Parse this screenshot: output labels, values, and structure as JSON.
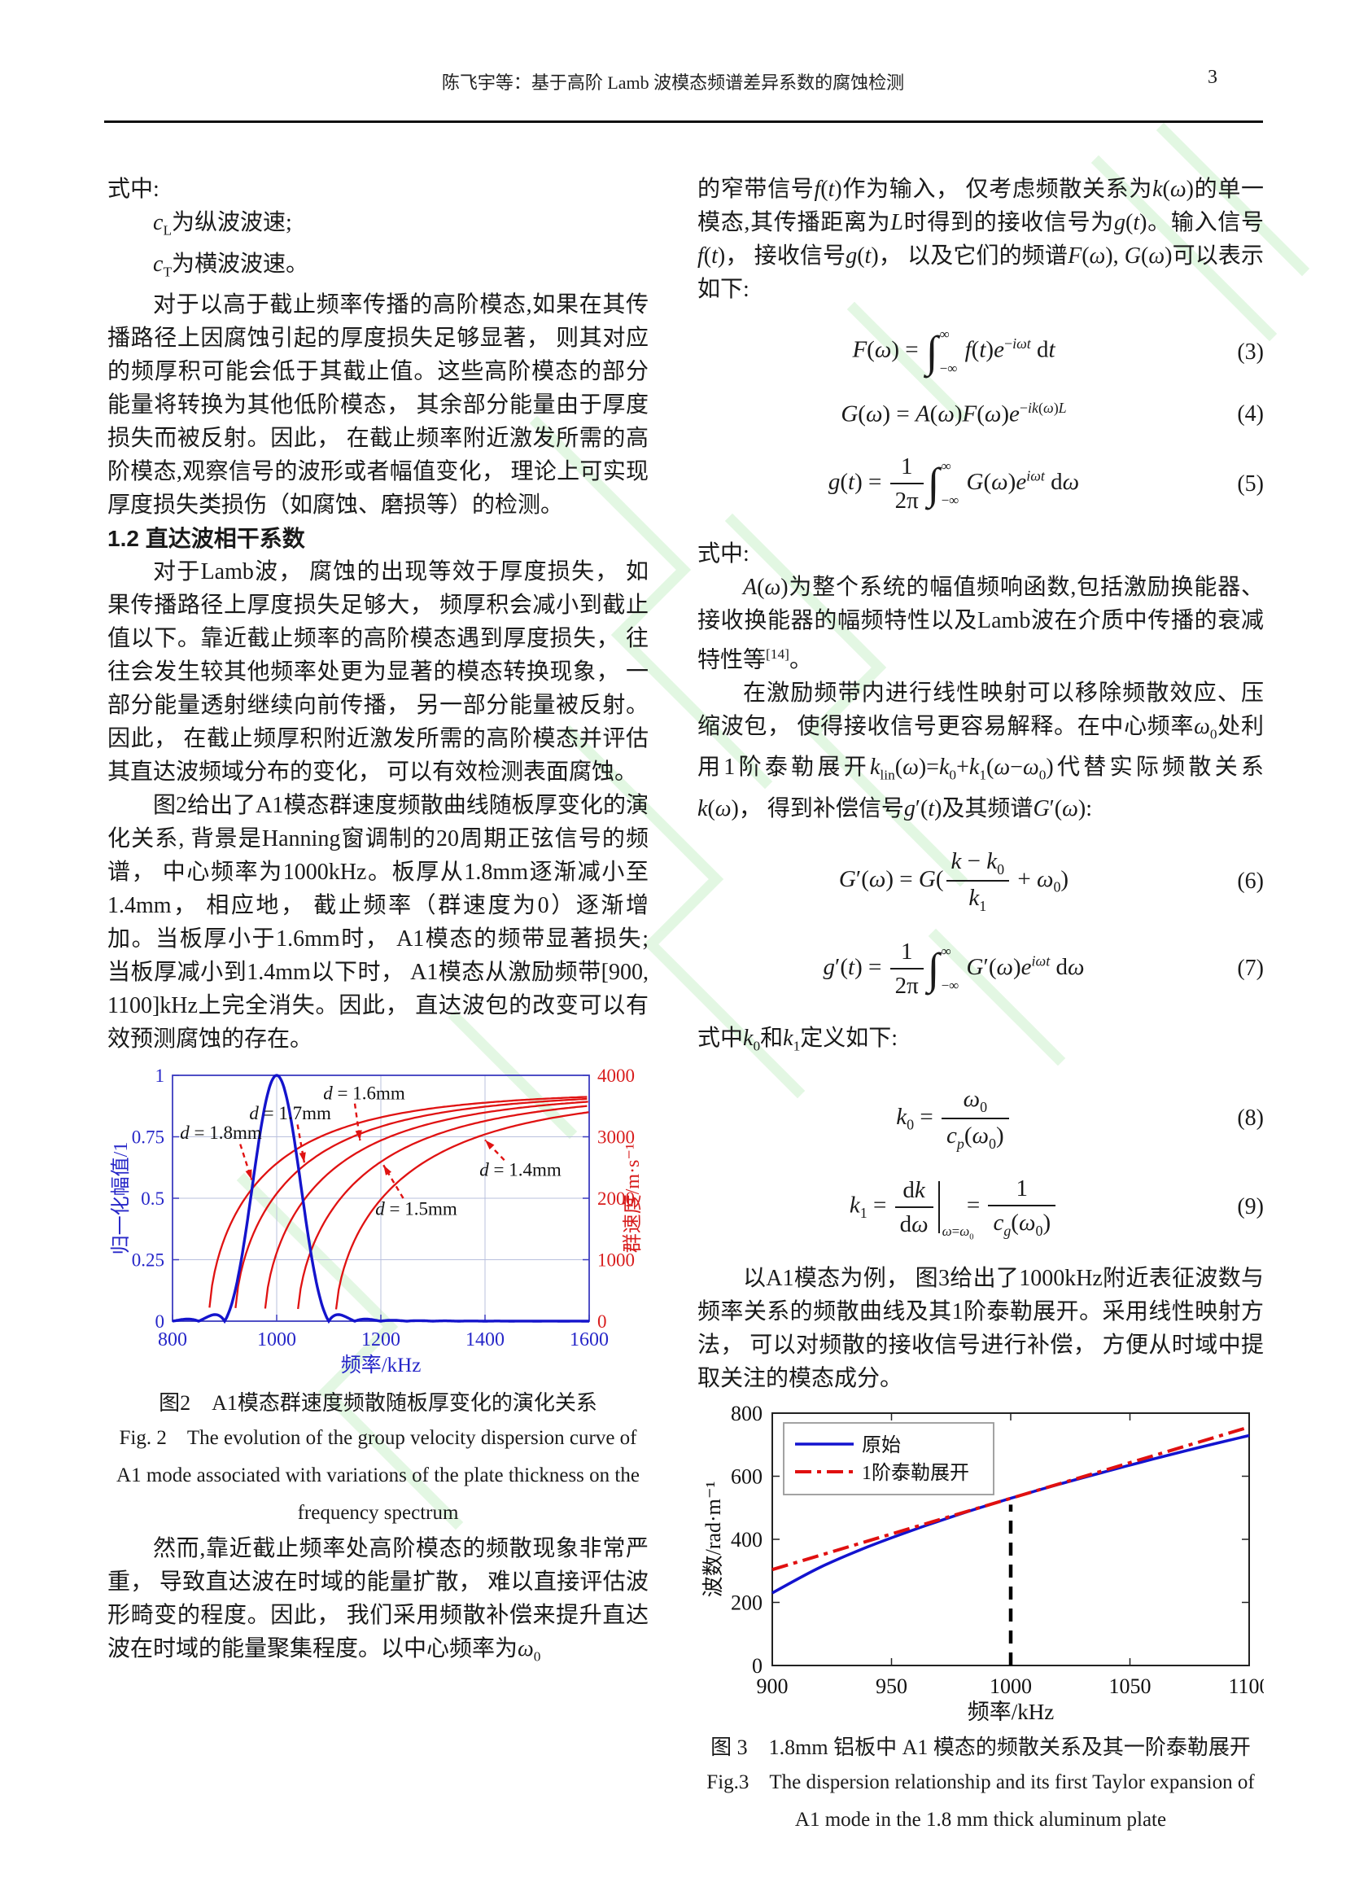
{
  "header": {
    "title": "陈飞宇等：基于高阶 Lamb 波模态频谱差异系数的腐蚀检测",
    "page_number": "3"
  },
  "left_column": {
    "p_shizhong": "式中:",
    "def_cl": "<i>c</i><sub>L</sub>为纵波波速;",
    "def_ct": "<i>c</i><sub>T</sub>为横波波速。",
    "p1": "对于以高于截止频率传播的高阶模态,如果在其传播路径上因腐蚀引起的厚度损失足够显著， 则其对应的频厚积可能会低于其截止值。这些高阶模态的部分能量将转换为其他低阶模态， 其余部分能量由于厚度损失而被反射。因此， 在截止频率附近激发所需的高阶模态,观察信号的波形或者幅值变化， 理论上可实现厚度损失类损伤（如腐蚀、磨损等）的检测。",
    "heading_12": "1.2  直达波相干系数",
    "p2": "对于Lamb波， 腐蚀的出现等效于厚度损失， 如果传播路径上厚度损失足够大， 频厚积会减小到截止值以下。靠近截止频率的高阶模态遇到厚度损失， 往往会发生较其他频率处更为显著的模态转换现象， 一部分能量透射继续向前传播， 另一部分能量被反射。因此， 在截止频厚积附近激发所需的高阶模态并评估其直达波频域分布的变化， 可以有效检测表面腐蚀。",
    "p3": "图2给出了A1模态群速度频散曲线随板厚变化的演化关系, 背景是Hanning窗调制的20周期正弦信号的频谱， 中心频率为1000kHz。板厚从1.8mm逐渐减小至1.4mm， 相应地， 截止频率（群速度为0）逐渐增加。当板厚小于1.6mm时， A1模态的频带显著损失; 当板厚减小到1.4mm以下时， A1模态从激励频带[900, 1100]kHz上完全消失。因此， 直达波包的改变可以有效预测腐蚀的存在。",
    "fig2_caption_cn": "图2　A1模态群速度频散随板厚变化的演化关系",
    "fig2_caption_en": "Fig. 2　The evolution of the group velocity dispersion curve of A1 mode associated with variations of the plate thickness on the frequency spectrum",
    "p4": "然而,靠近截止频率处高阶模态的频散现象非常严重， 导致直达波在时域的能量扩散， 难以直接评估波形畸变的程度。因此， 我们采用频散补偿来提升直达波在时域的能量聚集程度。以中心频率为<i>ω</i><sub>0</sub>"
  },
  "right_column": {
    "p1": "的窄带信号<i>f</i>(<i>t</i>)作为输入， 仅考虑频散关系为<i>k</i>(<i>ω</i>)的单一模态,其传播距离为<i>L</i>时得到的接收信号为<i>g</i>(<i>t</i>)。输入信号<i>f</i>(<i>t</i>)， 接收信号<i>g</i>(<i>t</i>)， 以及它们的频谱<i>F</i>(<i>ω</i>), <i>G</i>(<i>ω</i>)可以表示如下:",
    "eq3": {
      "num": "(3)",
      "html": "<i>F</i>(<i>ω</i>) = <span class='intwrap'><span class='int'>∫</span><span class='lims'><span class='lt'>∞</span><span class='lb'>−∞</span></span></span> <i>f</i>(<i>t</i>)<i>e</i><sup>−<i>iωt</i></sup> d<i>t</i>"
    },
    "eq4": {
      "num": "(4)",
      "html": "<i>G</i>(<i>ω</i>) = <i>A</i>(<i>ω</i>)<i>F</i>(<i>ω</i>)<i>e</i><sup>−<i>ik</i>(<i>ω</i>)<i>L</i></sup>"
    },
    "eq5": {
      "num": "(5)",
      "html": "<i>g</i>(<i>t</i>) = <span class='frac'><span class='ft'>1</span><span class='fb'>2π</span></span><span class='intwrap'><span class='int'>∫</span><span class='lims'><span class='lt'>∞</span><span class='lb'>−∞</span></span></span> <i>G</i>(<i>ω</i>)<i>e</i><sup><i>iωt</i></sup> d<i>ω</i>"
    },
    "p2": "式中:",
    "p3": "<i>A</i>(<i>ω</i>)为整个系统的幅值频响函数,包括激励换能器、接收换能器的幅频特性以及Lamb波在介质中传播的衰减特性等<sup>[14]</sup>。",
    "p4": "在激励频带内进行线性映射可以移除频散效应、压缩波包， 使得接收信号更容易解释。在中心频率<i>ω</i><sub>0</sub>处利用1阶泰勒展开<i>k</i><sub>lin</sub>(<i>ω</i>)=<i>k</i><sub>0</sub>+<i>k</i><sub>1</sub>(<i>ω</i>−<i>ω</i><sub>0</sub>)代替实际频散关系<i>k</i>(<i>ω</i>)， 得到补偿信号<i>g</i>′(<i>t</i>)及其频谱<i>G</i>′(<i>ω</i>):",
    "eq6": {
      "num": "(6)",
      "html": "<i>G</i>′(<i>ω</i>) = <i>G</i>(<span class='frac'><span class='ft'><i>k</i> − <i>k</i><sub>0</sub></span><span class='fb'><i>k</i><sub>1</sub></span></span> + <i>ω</i><sub>0</sub>)"
    },
    "eq7": {
      "num": "(7)",
      "html": "<i>g</i>′(<i>t</i>) = <span class='frac'><span class='ft'>1</span><span class='fb'>2π</span></span><span class='intwrap'><span class='int'>∫</span><span class='lims'><span class='lt'>∞</span><span class='lb'>−∞</span></span></span> <i>G</i>′(<i>ω</i>)<i>e</i><sup><i>iωt</i></sup> d<i>ω</i>"
    },
    "p5": "式中<i>k</i><sub>0</sub>和<i>k</i><sub>1</sub>定义如下:",
    "eq8": {
      "num": "(8)",
      "html": "<i>k</i><sub>0</sub> = <span class='frac'><span class='ft'><i>ω</i><sub>0</sub></span><span class='fb'><i>c</i><sub><i>p</i></sub>(<i>ω</i><sub>0</sub>)</span></span>"
    },
    "eq9": {
      "num": "(9)",
      "html": "<i>k</i><sub>1</sub> = <span class='frac'><span class='ft'>d<i>k</i></span><span class='fb'>d<i>ω</i></span></span><span class='evbar'><span class='esub'><i>ω</i>=<i>ω</i><sub>0</sub></span></span> = <span class='frac'><span class='ft'>1</span><span class='fb'><i>c</i><sub><i>g</i></sub>(<i>ω</i><sub>0</sub>)</span></span>"
    },
    "p6": "以A1模态为例， 图3给出了1000kHz附近表征波数与频率关系的频散曲线及其1阶泰勒展开。采用线性映射方法， 可以对频散的接收信号进行补偿， 方便从时域中提取关注的模态成分。",
    "fig3_caption_cn": "图 3　1.8mm 铝板中 A1 模态的频散关系及其一阶泰勒展开",
    "fig3_caption_en": "Fig.3　The dispersion relationship and its first Taylor expansion of A1 mode in the 1.8 mm thick aluminum plate"
  },
  "chart_data": [
    {
      "id": "figure-2",
      "type": "line",
      "dual_axis": true,
      "xlabel": "频率/kHz",
      "x_range": [
        800,
        1600
      ],
      "x_ticks": [
        800,
        1000,
        1200,
        1400,
        1600
      ],
      "left_axis": {
        "label": "归一化幅值/1",
        "range": [
          0,
          1
        ],
        "ticks": [
          "0",
          "0.25",
          "0.5",
          "0.75",
          "1"
        ],
        "color": "#2626c8"
      },
      "right_axis": {
        "label": "群速度/m·s⁻¹",
        "range": [
          0,
          4000
        ],
        "ticks": [
          "0",
          "1000",
          "2000",
          "3000",
          "4000"
        ],
        "color": "#d81d1d"
      },
      "spectrum": {
        "name": "Hanning窗调制20周期正弦信号频谱",
        "center_kHz": 1000,
        "main_lobe_kHz": [
          900,
          1100
        ],
        "peak_amplitude": 1,
        "color": "#1414cc"
      },
      "dispersion": {
        "color": "#e01212",
        "v_asymptote_ms": 3750,
        "series": [
          {
            "label": "d = 1.8mm",
            "cutoff_kHz": 870
          },
          {
            "label": "d = 1.7mm",
            "cutoff_kHz": 920
          },
          {
            "label": "d = 1.6mm",
            "cutoff_kHz": 977
          },
          {
            "label": "d = 1.5mm",
            "cutoff_kHz": 1040
          },
          {
            "label": "d = 1.4mm",
            "cutoff_kHz": 1113
          }
        ]
      },
      "annotations": [
        {
          "label": "d = 1.8mm",
          "text_kHz": 893,
          "text_amp": 0.765,
          "arrow_from": [
            930,
            0.72
          ],
          "arrow_to": [
            952,
            0.575
          ]
        },
        {
          "label": "d = 1.7mm",
          "text_kHz": 1026,
          "text_amp": 0.845,
          "arrow_from": [
            1040,
            0.8
          ],
          "arrow_to": [
            1053,
            0.645
          ]
        },
        {
          "label": "d = 1.6mm",
          "text_kHz": 1168,
          "text_amp": 0.925,
          "arrow_from": [
            1150,
            0.885
          ],
          "arrow_to": [
            1160,
            0.735
          ]
        },
        {
          "label": "d = 1.5mm",
          "text_kHz": 1268,
          "text_amp": 0.455,
          "arrow_from": [
            1243,
            0.5
          ],
          "arrow_to": [
            1205,
            0.635
          ]
        },
        {
          "label": "d = 1.4mm",
          "text_kHz": 1468,
          "text_amp": 0.615,
          "arrow_from": [
            1437,
            0.655
          ],
          "arrow_to": [
            1400,
            0.737
          ]
        }
      ]
    },
    {
      "id": "figure-3",
      "type": "line",
      "xlabel": "频率/kHz",
      "ylabel": "波数/rad·m⁻¹",
      "x_range": [
        900,
        1100
      ],
      "x_ticks": [
        900,
        950,
        1000,
        1050,
        1100
      ],
      "y_range": [
        0,
        800
      ],
      "y_ticks": [
        0,
        200,
        400,
        600,
        800
      ],
      "legend": {
        "position": "top-left",
        "entries": [
          {
            "label": "原始",
            "color": "#1313cf",
            "style": "solid"
          },
          {
            "label": "1阶泰勒展开",
            "color": "#e01010",
            "style": "dash-dot"
          }
        ]
      },
      "series": [
        {
          "name": "原始",
          "color": "#1313cf",
          "style": "solid",
          "points": [
            [
              900,
              230
            ],
            [
              920,
              311
            ],
            [
              940,
              376
            ],
            [
              960,
              432
            ],
            [
              980,
              483
            ],
            [
              1000,
              530
            ],
            [
              1020,
              574
            ],
            [
              1040,
              615
            ],
            [
              1060,
              655
            ],
            [
              1080,
              693
            ],
            [
              1100,
              729
            ]
          ]
        },
        {
          "name": "1阶泰勒展开",
          "color": "#e01010",
          "style": "dash-dot",
          "points": [
            [
              900,
              304
            ],
            [
              1100,
              756
            ]
          ]
        }
      ],
      "cursor_line": {
        "x_kHz": 1000,
        "y_top": 510,
        "color": "#000000",
        "style": "dashed"
      }
    }
  ]
}
